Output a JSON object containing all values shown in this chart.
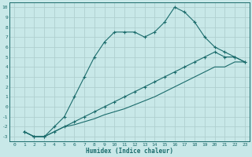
{
  "xlabel": "Humidex (Indice chaleur)",
  "bg_color": "#c8e8e8",
  "grid_color": "#b0d0d0",
  "line_color": "#1a6b6b",
  "xlim": [
    -0.5,
    23.5
  ],
  "ylim": [
    -3.5,
    10.5
  ],
  "xticks": [
    0,
    1,
    2,
    3,
    4,
    5,
    6,
    7,
    8,
    9,
    10,
    11,
    12,
    13,
    14,
    15,
    16,
    17,
    18,
    19,
    20,
    21,
    22,
    23
  ],
  "yticks": [
    -3,
    -2,
    -1,
    0,
    1,
    2,
    3,
    4,
    5,
    6,
    7,
    8,
    9,
    10
  ],
  "line1_x": [
    1,
    2,
    3,
    4,
    5,
    6,
    7,
    8,
    9,
    10,
    11,
    12,
    13,
    14,
    15,
    16,
    17,
    18,
    19,
    20,
    21,
    22,
    23
  ],
  "line1_y": [
    -2.5,
    -3.0,
    -3.0,
    -2.0,
    -1.0,
    1.0,
    3.0,
    5.0,
    6.5,
    7.5,
    7.5,
    7.5,
    7.0,
    7.5,
    8.5,
    10.0,
    9.5,
    8.5,
    7.0,
    6.0,
    5.5,
    5.0,
    4.5
  ],
  "line2_x": [
    1,
    2,
    3,
    4,
    5,
    6,
    7,
    8,
    9,
    10,
    11,
    12,
    13,
    14,
    15,
    16,
    17,
    18,
    19,
    20,
    21,
    22,
    23
  ],
  "line2_y": [
    -2.5,
    -3.0,
    -3.0,
    -2.5,
    -2.0,
    -1.5,
    -1.0,
    -0.5,
    0.0,
    0.5,
    1.0,
    1.5,
    2.0,
    2.5,
    3.0,
    3.5,
    4.0,
    4.5,
    5.0,
    5.5,
    5.0,
    5.0,
    4.5
  ],
  "line3_x": [
    1,
    2,
    3,
    4,
    5,
    6,
    7,
    8,
    9,
    10,
    11,
    12,
    13,
    14,
    15,
    16,
    17,
    18,
    19,
    20,
    21,
    22,
    23
  ],
  "line3_y": [
    -2.5,
    -3.0,
    -3.0,
    -2.5,
    -2.0,
    -1.8,
    -1.5,
    -1.2,
    -0.8,
    -0.5,
    -0.2,
    0.2,
    0.6,
    1.0,
    1.5,
    2.0,
    2.5,
    3.0,
    3.5,
    4.0,
    4.0,
    4.5,
    4.5
  ]
}
